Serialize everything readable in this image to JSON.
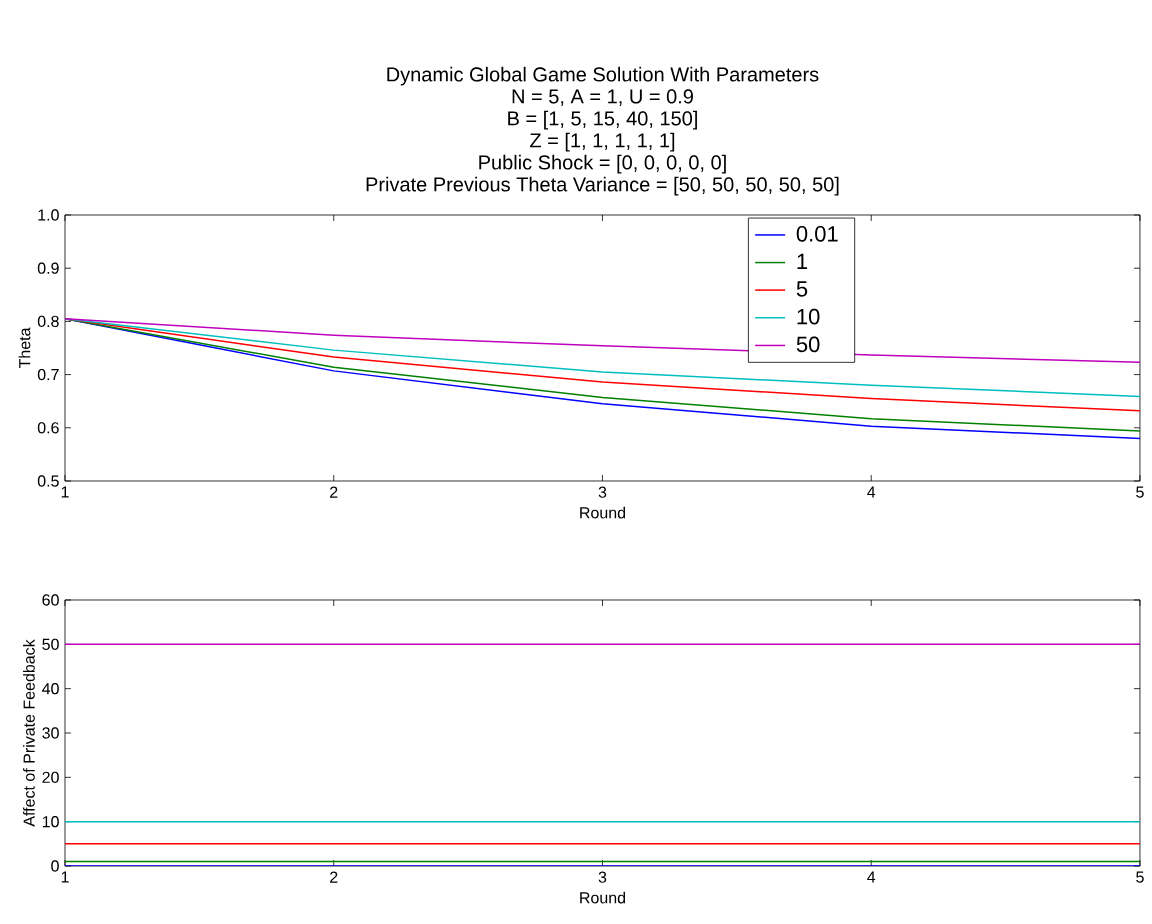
{
  "chart_data": [
    {
      "type": "line",
      "title": "Dynamic Global Game Solution With Parameters",
      "annotations": [
        "N = 5, A = 1, U = 0.9",
        "B = [1, 5, 15, 40, 150]",
        "Z = [1, 1, 1, 1, 1]",
        "Public Shock = [0, 0, 0, 0, 0]",
        "Private Previous Theta Variance = [50, 50, 50, 50, 50]"
      ],
      "xlabel": "Round",
      "ylabel": "Theta",
      "x": [
        1,
        2,
        3,
        4,
        5
      ],
      "series": [
        {
          "name": "0.01",
          "color": "#0000ff",
          "values": [
            0.805,
            0.707,
            0.645,
            0.603,
            0.58
          ]
        },
        {
          "name": "1",
          "color": "#008000",
          "values": [
            0.805,
            0.714,
            0.657,
            0.617,
            0.594
          ]
        },
        {
          "name": "5",
          "color": "#ff0000",
          "values": [
            0.805,
            0.733,
            0.686,
            0.655,
            0.632
          ]
        },
        {
          "name": "10",
          "color": "#00bfbf",
          "values": [
            0.805,
            0.746,
            0.705,
            0.68,
            0.659
          ]
        },
        {
          "name": "50",
          "color": "#bf00bf",
          "values": [
            0.805,
            0.774,
            0.754,
            0.737,
            0.723
          ]
        }
      ],
      "xlim": [
        1,
        5
      ],
      "xticks": [
        1,
        2,
        3,
        4,
        5
      ],
      "ylim": [
        0.5,
        1
      ],
      "yticks": [
        0.5,
        0.6,
        0.7,
        0.8,
        0.9,
        {
          "value": 1,
          "label": "1.0"
        }
      ],
      "legend": "top right",
      "grid": false
    },
    {
      "type": "line",
      "xlabel": "Round",
      "ylabel": "Affect of Private Feedback",
      "x": [
        1,
        2,
        3,
        4,
        5
      ],
      "series": [
        {
          "color": "#0000ff",
          "values": [
            0,
            0,
            0,
            0,
            0
          ]
        },
        {
          "color": "#008000",
          "values": [
            1,
            1,
            1,
            1,
            1
          ]
        },
        {
          "color": "#ff0000",
          "values": [
            5,
            5,
            5,
            5,
            5
          ]
        },
        {
          "color": "#00bfbf",
          "values": [
            10,
            10,
            10,
            10,
            10
          ]
        },
        {
          "color": "#bf00bf",
          "values": [
            50,
            50,
            50,
            50,
            50
          ]
        }
      ],
      "xlim": [
        1,
        5
      ],
      "xticks": [
        1,
        2,
        3,
        4,
        5
      ],
      "ylim": [
        0,
        60
      ],
      "yticks": [
        0,
        10,
        20,
        30,
        40,
        50,
        60
      ],
      "legend": false,
      "grid": false
    }
  ]
}
